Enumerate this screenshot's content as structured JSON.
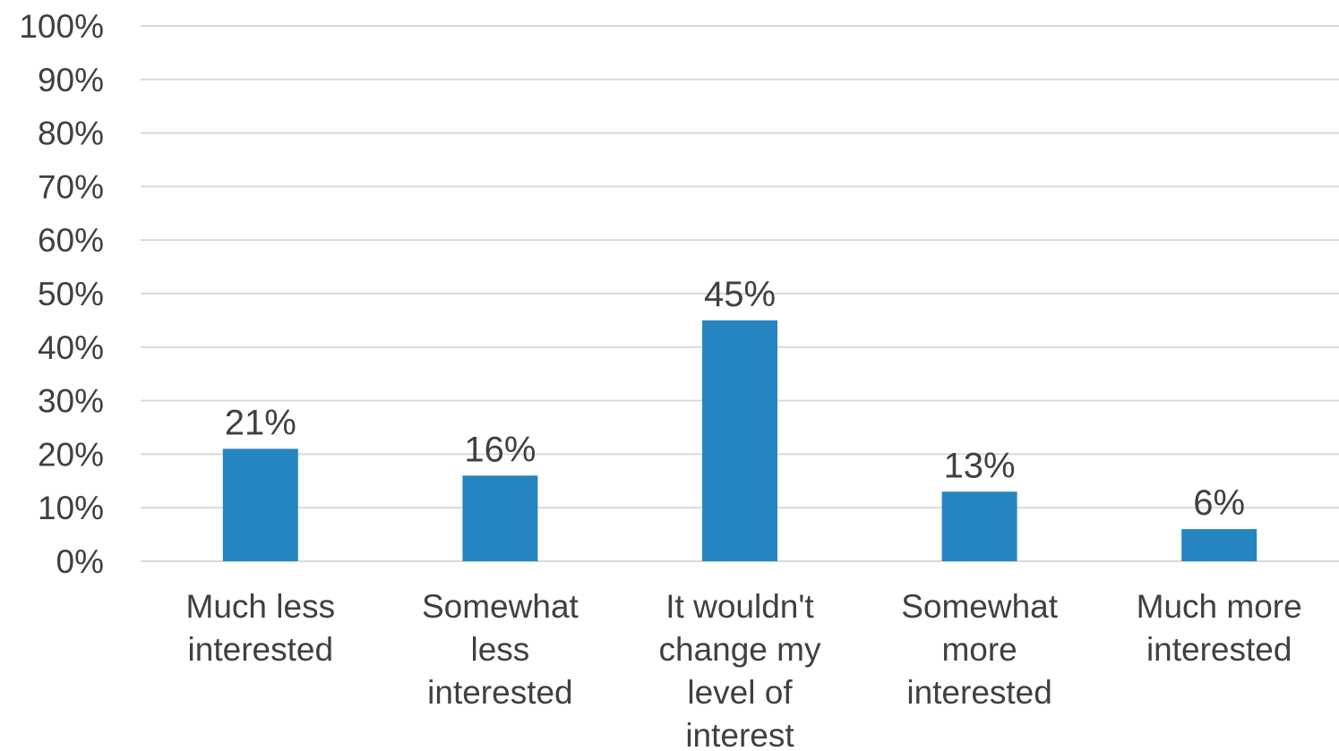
{
  "chart_data": {
    "type": "bar",
    "categories": [
      [
        "Much less",
        "interested"
      ],
      [
        "Somewhat",
        "less",
        "interested"
      ],
      [
        "It wouldn't",
        "change my",
        "level of",
        "interest"
      ],
      [
        "Somewhat",
        "more",
        "interested"
      ],
      [
        "Much more",
        "interested"
      ]
    ],
    "values": [
      21,
      16,
      45,
      13,
      6
    ],
    "data_labels": [
      "21%",
      "16%",
      "45%",
      "13%",
      "6%"
    ],
    "ylim": [
      0,
      100
    ],
    "y_ticks": [
      "0%",
      "10%",
      "20%",
      "30%",
      "40%",
      "50%",
      "60%",
      "70%",
      "80%",
      "90%",
      "100%"
    ],
    "grid": true,
    "legend": "none",
    "colors": {
      "bar": "#2585C0",
      "grid": "#D9D9D9",
      "text": "#404040"
    }
  }
}
